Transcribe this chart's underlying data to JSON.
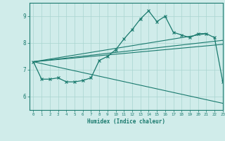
{
  "xlabel": "Humidex (Indice chaleur)",
  "xlim": [
    -0.5,
    23
  ],
  "ylim": [
    5.5,
    9.5
  ],
  "yticks": [
    6,
    7,
    8,
    9
  ],
  "xticks": [
    0,
    1,
    2,
    3,
    4,
    5,
    6,
    7,
    8,
    9,
    10,
    11,
    12,
    13,
    14,
    15,
    16,
    17,
    18,
    19,
    20,
    21,
    22,
    23
  ],
  "line_color": "#1a7a6e",
  "bg_color": "#d0ecea",
  "grid_color": "#a8d4d0",
  "main_x": [
    0,
    1,
    2,
    3,
    4,
    5,
    6,
    7,
    8,
    9,
    10,
    11,
    12,
    13,
    14,
    15,
    16,
    17,
    18,
    19,
    20,
    21,
    22,
    23
  ],
  "main_y": [
    7.3,
    6.65,
    6.65,
    6.7,
    6.55,
    6.55,
    6.6,
    6.7,
    7.35,
    7.5,
    7.75,
    8.15,
    8.5,
    8.9,
    9.2,
    8.8,
    9.0,
    8.4,
    8.3,
    8.2,
    8.35,
    8.35,
    8.2,
    6.55
  ],
  "upper_line_x": [
    0,
    21
  ],
  "upper_line_y": [
    7.3,
    8.35
  ],
  "lower_line_x": [
    0,
    23
  ],
  "lower_line_y": [
    7.3,
    5.75
  ],
  "mid_line_x": [
    0,
    23
  ],
  "mid_line_y": [
    7.3,
    7.95
  ],
  "mid2_line_x": [
    0,
    23
  ],
  "mid2_line_y": [
    7.3,
    8.1
  ]
}
